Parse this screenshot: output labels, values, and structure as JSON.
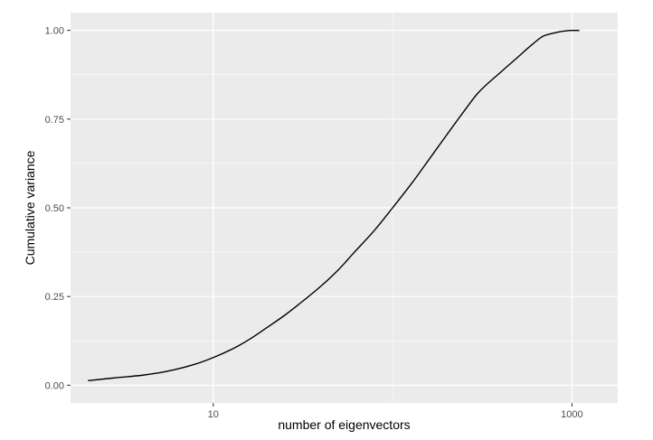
{
  "chart_data": {
    "type": "line",
    "title": "",
    "xlabel": "number of eigenvectors",
    "ylabel": "Cumulative variance",
    "x_scale": "log10",
    "xlim": [
      1.6,
      1800
    ],
    "ylim": [
      -0.05,
      1.05
    ],
    "x_ticks": [
      10,
      1000
    ],
    "x_tick_labels": [
      "10",
      "1000"
    ],
    "y_ticks": [
      0,
      0.25,
      0.5,
      0.75,
      1.0
    ],
    "y_tick_labels": [
      "0.00",
      "0.25",
      "0.50",
      "0.75",
      "1.00"
    ],
    "grid": true,
    "legend": "none",
    "colors": {
      "panel": "#ebebeb",
      "grid": "#ffffff",
      "line": "#000000"
    },
    "series": [
      {
        "x": [
          2,
          3,
          4,
          5,
          6,
          8,
          10,
          13,
          16,
          20,
          25,
          30,
          40,
          50,
          60,
          80,
          100,
          130,
          160,
          200,
          250,
          300,
          400,
          500,
          600,
          700,
          800,
          900,
          1000,
          1100
        ],
        "y": [
          0.013,
          0.022,
          0.028,
          0.035,
          0.043,
          0.06,
          0.078,
          0.104,
          0.13,
          0.163,
          0.197,
          0.228,
          0.28,
          0.326,
          0.37,
          0.439,
          0.5,
          0.574,
          0.637,
          0.705,
          0.772,
          0.824,
          0.882,
          0.925,
          0.96,
          0.985,
          0.993,
          0.998,
          1.0,
          1.0
        ]
      }
    ]
  }
}
